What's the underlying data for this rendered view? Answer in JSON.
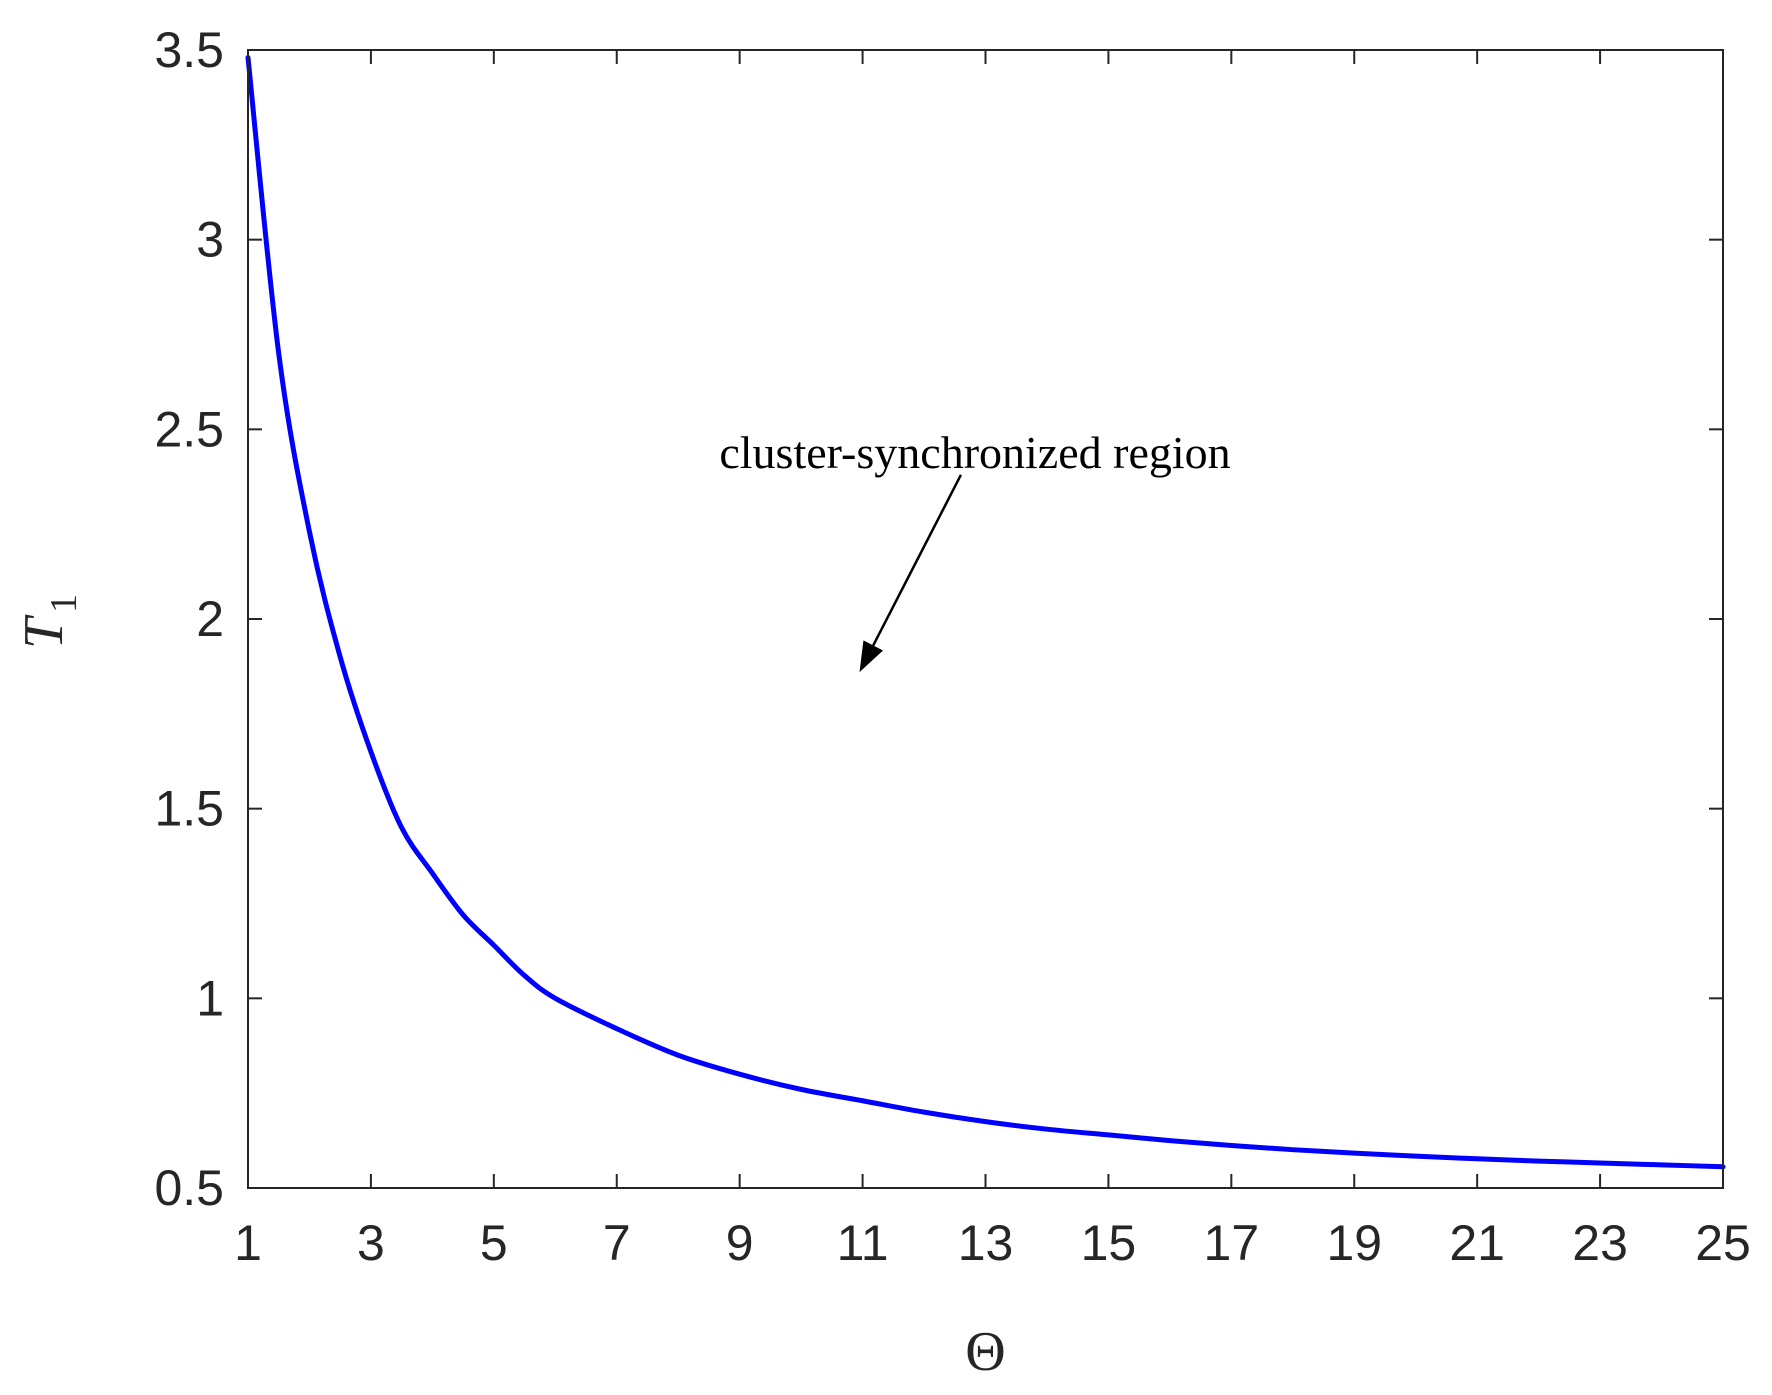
{
  "chart_data": {
    "type": "line",
    "title": "",
    "xlabel": "Θ",
    "ylabel": "T",
    "ylabel_subscript": "1",
    "xlim": [
      1,
      25
    ],
    "ylim": [
      0.5,
      3.5
    ],
    "x_ticks": [
      1,
      3,
      5,
      7,
      9,
      11,
      13,
      15,
      17,
      19,
      21,
      23,
      25
    ],
    "x_tick_labels": [
      "1",
      "3",
      "5",
      "7",
      "9",
      "11",
      "13",
      "15",
      "17",
      "19",
      "21",
      "23",
      "25"
    ],
    "y_ticks": [
      0.5,
      1,
      1.5,
      2,
      2.5,
      3,
      3.5
    ],
    "y_tick_labels": [
      "0.5",
      "1",
      "1.5",
      "2",
      "2.5",
      "3",
      "3.5"
    ],
    "grid": false,
    "box": true,
    "series": [
      {
        "color": "#0000ff",
        "x": [
          1,
          1.5,
          2,
          2.5,
          3,
          3.5,
          4,
          4.5,
          5,
          5.5,
          6,
          7,
          8,
          9,
          10,
          11,
          12,
          13,
          14,
          15,
          16,
          17,
          18,
          19,
          20,
          21,
          22,
          23,
          24,
          25
        ],
        "y": [
          3.48,
          2.7,
          2.23,
          1.9,
          1.65,
          1.45,
          1.33,
          1.22,
          1.14,
          1.06,
          1.0,
          0.92,
          0.85,
          0.8,
          0.76,
          0.73,
          0.7,
          0.675,
          0.655,
          0.64,
          0.625,
          0.612,
          0.601,
          0.592,
          0.584,
          0.577,
          0.571,
          0.566,
          0.561,
          0.556
        ]
      }
    ],
    "annotations": [
      {
        "text": "cluster-synchronized region",
        "arrow_from": [
          12.6,
          2.38
        ],
        "arrow_to": [
          10.95,
          1.86
        ]
      }
    ]
  }
}
